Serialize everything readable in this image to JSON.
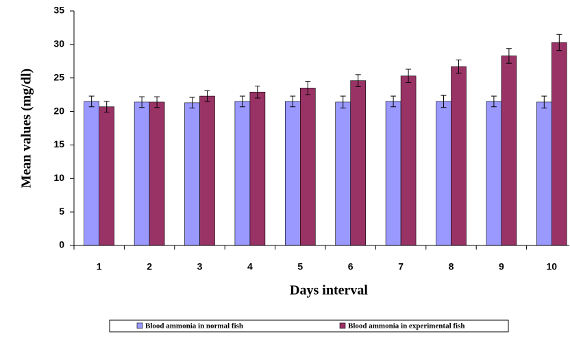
{
  "chart_data": {
    "type": "bar",
    "x_label": "Days interval",
    "y_label": "Mean values (mg/dl)",
    "categories": [
      "1",
      "2",
      "3",
      "4",
      "5",
      "6",
      "7",
      "8",
      "9",
      "10"
    ],
    "series": [
      {
        "name": "Blood ammonia in normal fish",
        "color": "#9999ff",
        "values": [
          21.5,
          21.4,
          21.3,
          21.5,
          21.5,
          21.4,
          21.5,
          21.5,
          21.5,
          21.4
        ],
        "errors": [
          0.8,
          0.8,
          0.8,
          0.8,
          0.8,
          0.9,
          0.8,
          0.9,
          0.8,
          0.9
        ]
      },
      {
        "name": "Blood ammonia in experimental fish",
        "color": "#993366",
        "values": [
          20.7,
          21.4,
          22.3,
          22.9,
          23.5,
          24.6,
          25.3,
          26.7,
          28.3,
          30.3
        ],
        "errors": [
          0.8,
          0.8,
          0.8,
          0.9,
          1.0,
          0.9,
          1.0,
          1.0,
          1.1,
          1.2
        ]
      }
    ],
    "ylim": [
      0,
      35
    ],
    "yticks": [
      0,
      5,
      10,
      15,
      20,
      25,
      30,
      35
    ],
    "legend": "bottom"
  }
}
